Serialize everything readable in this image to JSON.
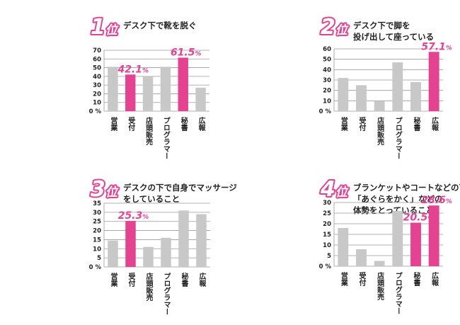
{
  "colors": {
    "accent": "#e64292",
    "bar": "#c8c8c8",
    "grid": "#999999"
  },
  "chart_data": [
    {
      "type": "bar",
      "rank": "1",
      "rank_suffix": "位",
      "title_lines": [
        "デスク下で靴を脱ぐ"
      ],
      "categories": [
        "営業",
        "受付",
        "店頭販売",
        "プログラマー",
        "秘書",
        "広報"
      ],
      "values": [
        51,
        42.1,
        40,
        51,
        61.5,
        27
      ],
      "highlight": [
        1,
        4
      ],
      "data_labels": {
        "1": {
          "num": "42.1",
          "unit": "%"
        },
        "4": {
          "num": "61.5",
          "unit": "%"
        }
      },
      "yticks": [
        "0 %",
        "10",
        "20",
        "30",
        "40",
        "50",
        "60",
        "70"
      ],
      "ylim": [
        0,
        70
      ]
    },
    {
      "type": "bar",
      "rank": "2",
      "rank_suffix": "位",
      "title_lines": [
        "デスク下で脚を",
        "投げ出して座っている"
      ],
      "categories": [
        "営業",
        "受付",
        "店頭販売",
        "プログラマー",
        "秘書",
        "広報"
      ],
      "values": [
        32,
        25,
        10,
        47,
        28,
        57.1
      ],
      "highlight": [
        5
      ],
      "data_labels": {
        "5": {
          "num": "57.1",
          "unit": "%"
        }
      },
      "yticks": [
        "0 %",
        "10",
        "20",
        "30",
        "40",
        "50",
        "60"
      ],
      "ylim": [
        0,
        60
      ]
    },
    {
      "type": "bar",
      "rank": "3",
      "rank_suffix": "位",
      "title_lines": [
        "デスクの下で自身でマッサージ",
        "をしていること"
      ],
      "categories": [
        "営業",
        "受付",
        "店頭販売",
        "プログラマー",
        "秘書",
        "広報"
      ],
      "values": [
        14.5,
        25.3,
        11,
        16,
        31,
        29
      ],
      "highlight": [
        1
      ],
      "data_labels": {
        "1": {
          "num": "25.3",
          "unit": "%"
        }
      },
      "yticks": [
        "0 %",
        "5",
        "10",
        "15",
        "20",
        "25",
        "30",
        "35"
      ],
      "ylim": [
        0,
        35
      ]
    },
    {
      "type": "bar",
      "rank": "4",
      "rank_suffix": "位",
      "title_lines": [
        "ブランケットやコートなどの下で",
        "「あぐらをかく」などの",
        "体勢をとっていること"
      ],
      "categories": [
        "営業",
        "受付",
        "店頭販売",
        "プログラマー",
        "秘書",
        "広報"
      ],
      "values": [
        18,
        8,
        2.5,
        26,
        20.5,
        28.6
      ],
      "highlight": [
        4,
        5
      ],
      "data_labels": {
        "4": {
          "num": "20.5",
          "unit": "%"
        },
        "5": {
          "num": "28.6",
          "unit": "%"
        }
      },
      "yticks": [
        "0 %",
        "5",
        "10",
        "15",
        "20",
        "25",
        "30"
      ],
      "ylim": [
        0,
        30
      ]
    }
  ]
}
